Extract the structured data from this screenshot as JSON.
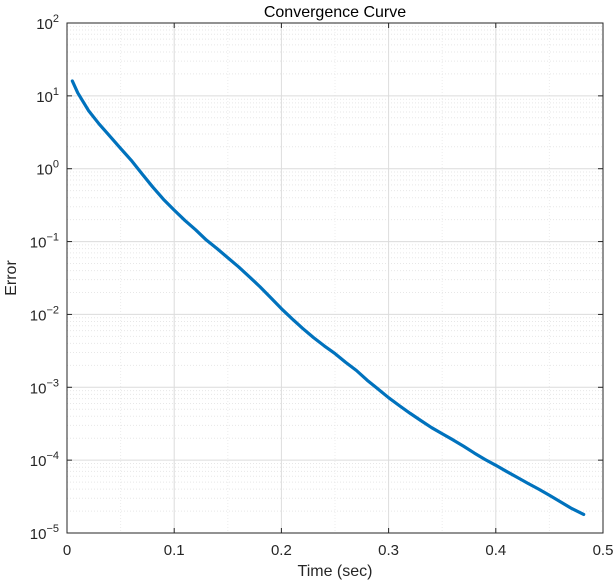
{
  "chart_data": {
    "type": "line",
    "title": "Convergence Curve",
    "xlabel": "Time (sec)",
    "ylabel": "Error",
    "xlim": [
      0,
      0.5
    ],
    "ylim": [
      1e-05,
      100
    ],
    "yscale": "log",
    "grid": true,
    "x_ticks": [
      {
        "value": 0,
        "label": "0"
      },
      {
        "value": 0.1,
        "label": "0.1"
      },
      {
        "value": 0.2,
        "label": "0.2"
      },
      {
        "value": 0.3,
        "label": "0.3"
      },
      {
        "value": 0.4,
        "label": "0.4"
      },
      {
        "value": 0.5,
        "label": "0.5"
      }
    ],
    "y_ticks": [
      {
        "value": 1e-05,
        "base": "10",
        "exp": "−5"
      },
      {
        "value": 0.0001,
        "base": "10",
        "exp": "−4"
      },
      {
        "value": 0.001,
        "base": "10",
        "exp": "−3"
      },
      {
        "value": 0.01,
        "base": "10",
        "exp": "−2"
      },
      {
        "value": 0.1,
        "base": "10",
        "exp": "−1"
      },
      {
        "value": 1,
        "base": "10",
        "exp": "0"
      },
      {
        "value": 10,
        "base": "10",
        "exp": "1"
      },
      {
        "value": 100,
        "base": "10",
        "exp": "2"
      }
    ],
    "line_color": "#0072bd",
    "grid_color": "#dcdcdc",
    "axis_color": "#262626",
    "series": [
      {
        "x": [
          0.005,
          0.01,
          0.02,
          0.03,
          0.04,
          0.05,
          0.06,
          0.07,
          0.08,
          0.09,
          0.1,
          0.11,
          0.12,
          0.13,
          0.14,
          0.15,
          0.16,
          0.17,
          0.18,
          0.19,
          0.2,
          0.21,
          0.22,
          0.23,
          0.24,
          0.25,
          0.26,
          0.27,
          0.28,
          0.29,
          0.3,
          0.31,
          0.32,
          0.33,
          0.34,
          0.35,
          0.36,
          0.37,
          0.38,
          0.39,
          0.4,
          0.41,
          0.42,
          0.43,
          0.44,
          0.45,
          0.46,
          0.47,
          0.482
        ],
        "y": [
          16,
          11,
          6.3,
          4.1,
          2.8,
          1.9,
          1.3,
          0.85,
          0.56,
          0.38,
          0.27,
          0.195,
          0.145,
          0.105,
          0.08,
          0.06,
          0.045,
          0.033,
          0.024,
          0.017,
          0.012,
          0.0087,
          0.0064,
          0.0048,
          0.0037,
          0.0029,
          0.0022,
          0.0017,
          0.00125,
          0.00095,
          0.00072,
          0.00056,
          0.00044,
          0.00035,
          0.00028,
          0.00023,
          0.00019,
          0.000155,
          0.000125,
          0.000102,
          8.5e-05,
          7e-05,
          5.8e-05,
          4.8e-05,
          4e-05,
          3.3e-05,
          2.7e-05,
          2.2e-05,
          1.8e-05
        ]
      }
    ]
  }
}
